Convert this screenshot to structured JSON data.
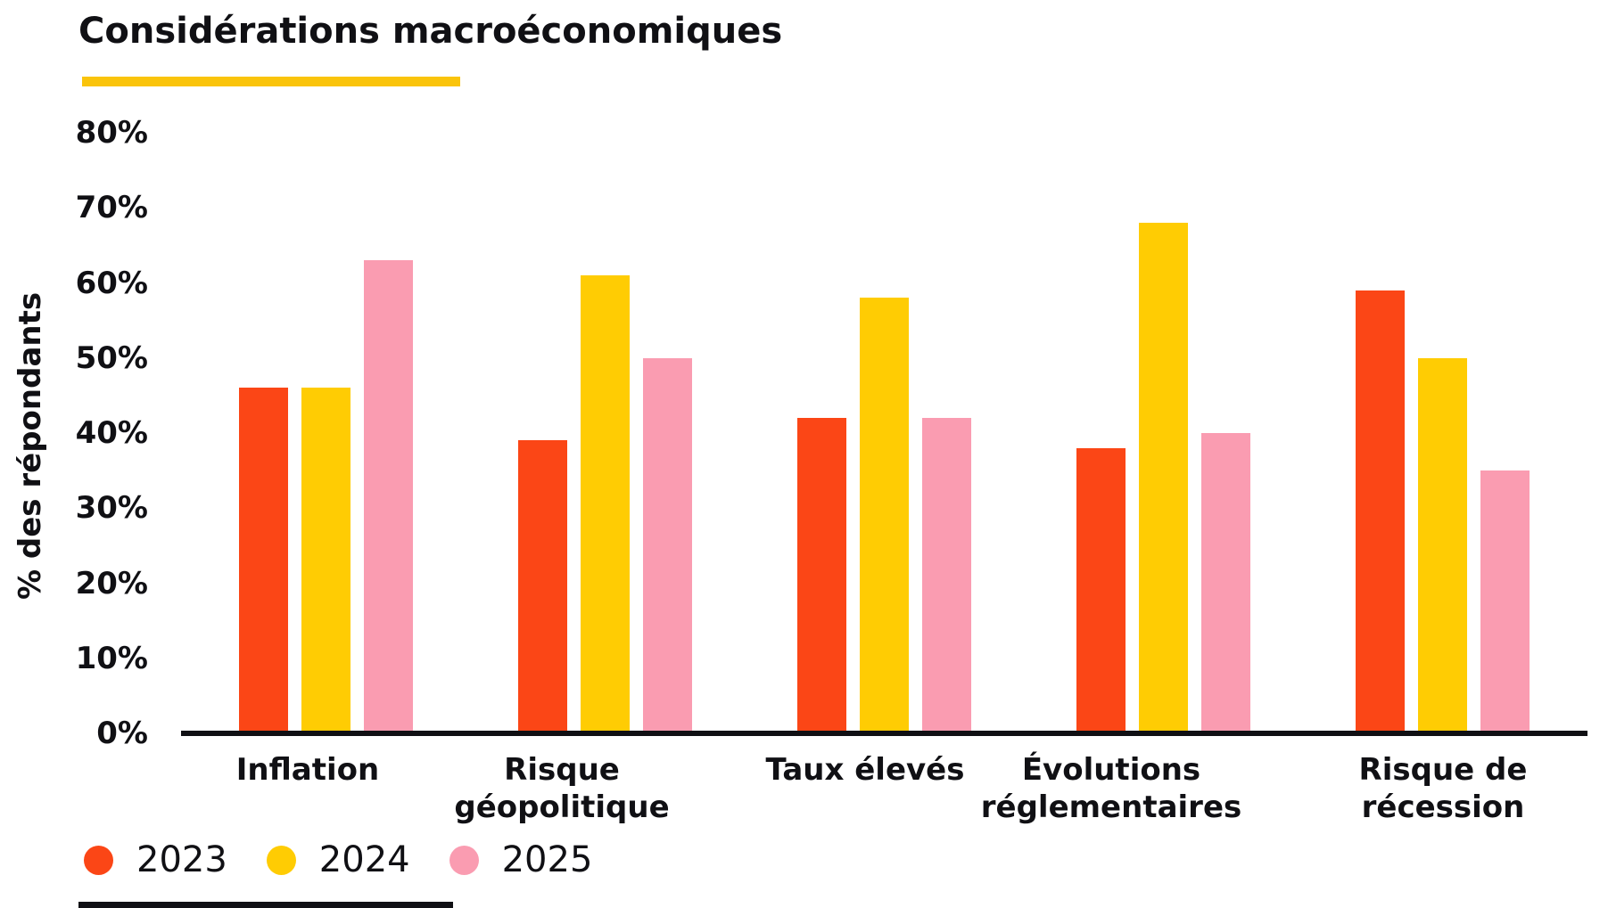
{
  "chart_data": {
    "type": "bar",
    "title": "Considérations macroéconomiques",
    "xlabel": "",
    "ylabel": "% des répondants",
    "categories": [
      "Inflation",
      "Risque géopolitique",
      "Taux élevés",
      "Évolutions réglementaires",
      "Risque de récession"
    ],
    "series": [
      {
        "name": "2023",
        "color": "#FB4616",
        "values": [
          46,
          39,
          42,
          38,
          59
        ]
      },
      {
        "name": "2024",
        "color": "#FFCC03",
        "values": [
          46,
          61,
          58,
          68,
          50
        ]
      },
      {
        "name": "2025",
        "color": "#FA9CB1",
        "values": [
          63,
          50,
          42,
          40,
          35
        ]
      }
    ],
    "ylim": [
      0,
      80
    ],
    "yticks": [
      {
        "value": 0,
        "label": "0%"
      },
      {
        "value": 10,
        "label": "10%"
      },
      {
        "value": 20,
        "label": "20%"
      },
      {
        "value": 30,
        "label": "30%"
      },
      {
        "value": 40,
        "label": "40%"
      },
      {
        "value": 50,
        "label": "50%"
      },
      {
        "value": 60,
        "label": "60%"
      },
      {
        "value": 70,
        "label": "70%"
      },
      {
        "value": 80,
        "label": "80%"
      }
    ],
    "grid": false,
    "legend_position": "bottom-left",
    "accent_underline_color": "#FAC40B"
  }
}
